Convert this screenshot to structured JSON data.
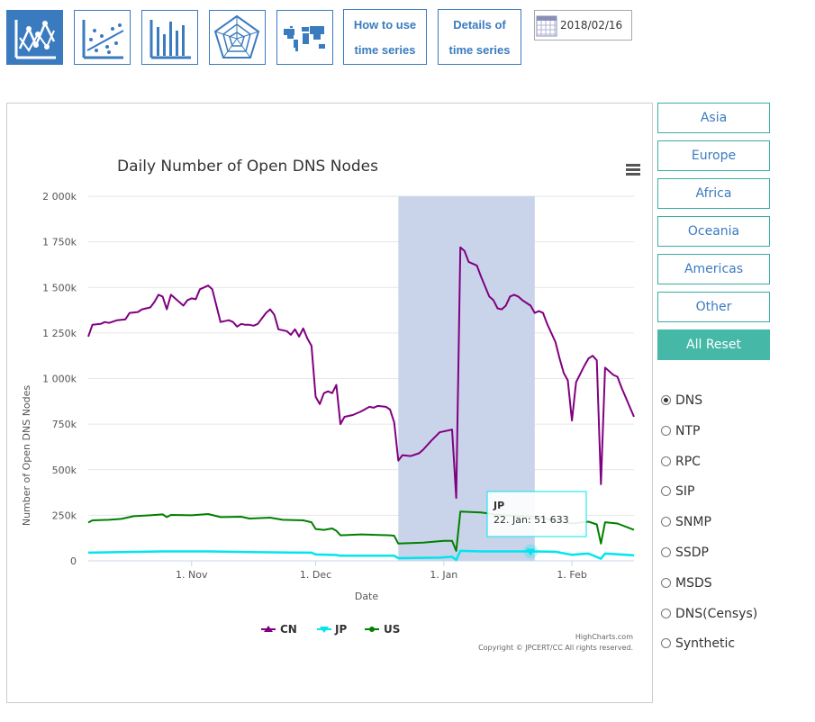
{
  "toolbar": {
    "icons": [
      "line-chart-icon",
      "scatter-chart-icon",
      "bar-chart-icon",
      "radar-chart-icon",
      "world-map-icon"
    ],
    "how_to_use": [
      "How to use",
      "time series"
    ],
    "details": [
      "Details of",
      "time series"
    ],
    "date": "2018/02/16"
  },
  "region_buttons": [
    "Asia",
    "Europe",
    "Africa",
    "Oceania",
    "Americas",
    "Other"
  ],
  "reset_label": "All Reset",
  "protocols": [
    {
      "label": "DNS",
      "selected": true
    },
    {
      "label": "NTP",
      "selected": false
    },
    {
      "label": "RPC",
      "selected": false
    },
    {
      "label": "SIP",
      "selected": false
    },
    {
      "label": "SNMP",
      "selected": false
    },
    {
      "label": "SSDP",
      "selected": false
    },
    {
      "label": "MSDS",
      "selected": false
    },
    {
      "label": "DNS(Censys)",
      "selected": false
    },
    {
      "label": "Synthetic",
      "selected": false
    }
  ],
  "colors": {
    "accent": "#3a7bbf",
    "teal": "#45b8a8",
    "cn": "#800080",
    "jp": "#00e5ee",
    "us": "#008000",
    "band": "#c9d4ea"
  },
  "credits": [
    "HighCharts.com",
    "Copyright © JPCERT/CC All rights reserved."
  ],
  "tooltip": {
    "series": "JP",
    "text": "22. Jan: 51 633"
  },
  "chart_data": {
    "type": "line",
    "title": "Daily Number of Open DNS Nodes",
    "xlabel": "Date",
    "ylabel": "Number of Open DNS Nodes",
    "ylim": [
      0,
      2000000
    ],
    "yticks": [
      "0",
      "250k",
      "500k",
      "750k",
      "1 000k",
      "1 250k",
      "1 500k",
      "1 750k",
      "2 000k"
    ],
    "xticks": [
      "1. Nov",
      "1. Dec",
      "1. Jan",
      "1. Feb"
    ],
    "x_range": [
      "2017-10-07",
      "2018-02-16"
    ],
    "highlight_band": [
      "2017-12-21",
      "2018-01-23"
    ],
    "legend_position": "bottom-center",
    "series": [
      {
        "name": "CN",
        "color": "#800080",
        "points": [
          [
            "2017-10-07",
            1230000
          ],
          [
            "2017-10-08",
            1295000
          ],
          [
            "2017-10-10",
            1300000
          ],
          [
            "2017-10-11",
            1310000
          ],
          [
            "2017-10-12",
            1305000
          ],
          [
            "2017-10-14",
            1320000
          ],
          [
            "2017-10-16",
            1325000
          ],
          [
            "2017-10-17",
            1360000
          ],
          [
            "2017-10-19",
            1365000
          ],
          [
            "2017-10-20",
            1380000
          ],
          [
            "2017-10-22",
            1390000
          ],
          [
            "2017-10-23",
            1420000
          ],
          [
            "2017-10-24",
            1460000
          ],
          [
            "2017-10-25",
            1450000
          ],
          [
            "2017-10-26",
            1380000
          ],
          [
            "2017-10-27",
            1460000
          ],
          [
            "2017-10-28",
            1440000
          ],
          [
            "2017-10-30",
            1400000
          ],
          [
            "2017-10-31",
            1430000
          ],
          [
            "2017-11-01",
            1440000
          ],
          [
            "2017-11-02",
            1435000
          ],
          [
            "2017-11-03",
            1490000
          ],
          [
            "2017-11-04",
            1500000
          ],
          [
            "2017-11-05",
            1510000
          ],
          [
            "2017-11-06",
            1490000
          ],
          [
            "2017-11-08",
            1310000
          ],
          [
            "2017-11-10",
            1320000
          ],
          [
            "2017-11-11",
            1310000
          ],
          [
            "2017-11-12",
            1285000
          ],
          [
            "2017-11-13",
            1300000
          ],
          [
            "2017-11-14",
            1295000
          ],
          [
            "2017-11-15",
            1295000
          ],
          [
            "2017-11-16",
            1290000
          ],
          [
            "2017-11-17",
            1300000
          ],
          [
            "2017-11-19",
            1360000
          ],
          [
            "2017-11-20",
            1380000
          ],
          [
            "2017-11-21",
            1350000
          ],
          [
            "2017-11-22",
            1270000
          ],
          [
            "2017-11-24",
            1260000
          ],
          [
            "2017-11-25",
            1240000
          ],
          [
            "2017-11-26",
            1270000
          ],
          [
            "2017-11-27",
            1230000
          ],
          [
            "2017-11-28",
            1275000
          ],
          [
            "2017-11-29",
            1220000
          ],
          [
            "2017-11-30",
            1180000
          ],
          [
            "2017-12-01",
            900000
          ],
          [
            "2017-12-02",
            860000
          ],
          [
            "2017-12-03",
            920000
          ],
          [
            "2017-12-04",
            930000
          ],
          [
            "2017-12-05",
            920000
          ],
          [
            "2017-12-06",
            965000
          ],
          [
            "2017-12-07",
            750000
          ],
          [
            "2017-12-08",
            790000
          ],
          [
            "2017-12-10",
            800000
          ],
          [
            "2017-12-12",
            820000
          ],
          [
            "2017-12-14",
            845000
          ],
          [
            "2017-12-15",
            840000
          ],
          [
            "2017-12-16",
            850000
          ],
          [
            "2017-12-18",
            845000
          ],
          [
            "2017-12-19",
            830000
          ],
          [
            "2017-12-20",
            760000
          ],
          [
            "2017-12-21",
            550000
          ],
          [
            "2017-12-22",
            580000
          ],
          [
            "2017-12-24",
            575000
          ],
          [
            "2017-12-26",
            590000
          ],
          [
            "2017-12-27",
            610000
          ],
          [
            "2017-12-29",
            660000
          ],
          [
            "2017-12-31",
            705000
          ],
          [
            "2018-01-02",
            715000
          ],
          [
            "2018-01-03",
            720000
          ],
          [
            "2018-01-04",
            345000
          ],
          [
            "2018-01-05",
            1720000
          ],
          [
            "2018-01-06",
            1700000
          ],
          [
            "2018-01-07",
            1640000
          ],
          [
            "2018-01-09",
            1620000
          ],
          [
            "2018-01-10",
            1560000
          ],
          [
            "2018-01-12",
            1450000
          ],
          [
            "2018-01-13",
            1430000
          ],
          [
            "2018-01-14",
            1385000
          ],
          [
            "2018-01-15",
            1380000
          ],
          [
            "2018-01-16",
            1400000
          ],
          [
            "2018-01-17",
            1450000
          ],
          [
            "2018-01-18",
            1460000
          ],
          [
            "2018-01-19",
            1450000
          ],
          [
            "2018-01-20",
            1430000
          ],
          [
            "2018-01-21",
            1415000
          ],
          [
            "2018-01-22",
            1400000
          ],
          [
            "2018-01-23",
            1360000
          ],
          [
            "2018-01-24",
            1370000
          ],
          [
            "2018-01-25",
            1360000
          ],
          [
            "2018-01-26",
            1300000
          ],
          [
            "2018-01-28",
            1200000
          ],
          [
            "2018-01-29",
            1110000
          ],
          [
            "2018-01-30",
            1030000
          ],
          [
            "2018-01-31",
            990000
          ],
          [
            "2018-02-01",
            770000
          ],
          [
            "2018-02-02",
            980000
          ],
          [
            "2018-02-04",
            1070000
          ],
          [
            "2018-02-05",
            1110000
          ],
          [
            "2018-02-06",
            1125000
          ],
          [
            "2018-02-07",
            1100000
          ],
          [
            "2018-02-08",
            420000
          ],
          [
            "2018-02-09",
            1060000
          ],
          [
            "2018-02-10",
            1040000
          ],
          [
            "2018-02-11",
            1020000
          ],
          [
            "2018-02-12",
            1010000
          ],
          [
            "2018-02-13",
            950000
          ],
          [
            "2018-02-16",
            790000
          ]
        ]
      },
      {
        "name": "JP",
        "color": "#00e5ee",
        "points": [
          [
            "2017-10-07",
            45000
          ],
          [
            "2017-10-15",
            48000
          ],
          [
            "2017-10-25",
            52000
          ],
          [
            "2017-11-05",
            52000
          ],
          [
            "2017-11-15",
            48000
          ],
          [
            "2017-11-25",
            46000
          ],
          [
            "2017-11-30",
            45000
          ],
          [
            "2017-12-01",
            35000
          ],
          [
            "2017-12-06",
            32000
          ],
          [
            "2017-12-07",
            28000
          ],
          [
            "2017-12-20",
            28000
          ],
          [
            "2017-12-21",
            15000
          ],
          [
            "2017-12-31",
            18000
          ],
          [
            "2018-01-03",
            22000
          ],
          [
            "2018-01-04",
            5000
          ],
          [
            "2018-01-05",
            55000
          ],
          [
            "2018-01-10",
            52000
          ],
          [
            "2018-01-22",
            51633
          ],
          [
            "2018-01-28",
            50000
          ],
          [
            "2018-02-01",
            33000
          ],
          [
            "2018-02-05",
            40000
          ],
          [
            "2018-02-08",
            12000
          ],
          [
            "2018-02-09",
            40000
          ],
          [
            "2018-02-16",
            30000
          ]
        ]
      },
      {
        "name": "US",
        "color": "#008000",
        "points": [
          [
            "2017-10-07",
            210000
          ],
          [
            "2017-10-08",
            222000
          ],
          [
            "2017-10-12",
            225000
          ],
          [
            "2017-10-15",
            230000
          ],
          [
            "2017-10-18",
            245000
          ],
          [
            "2017-10-22",
            250000
          ],
          [
            "2017-10-25",
            255000
          ],
          [
            "2017-10-26",
            240000
          ],
          [
            "2017-10-27",
            252000
          ],
          [
            "2017-11-01",
            250000
          ],
          [
            "2017-11-05",
            257000
          ],
          [
            "2017-11-08",
            240000
          ],
          [
            "2017-11-13",
            242000
          ],
          [
            "2017-11-15",
            232000
          ],
          [
            "2017-11-20",
            237000
          ],
          [
            "2017-11-23",
            225000
          ],
          [
            "2017-11-28",
            222000
          ],
          [
            "2017-11-30",
            212000
          ],
          [
            "2017-12-01",
            175000
          ],
          [
            "2017-12-03",
            170000
          ],
          [
            "2017-12-05",
            178000
          ],
          [
            "2017-12-06",
            165000
          ],
          [
            "2017-12-07",
            140000
          ],
          [
            "2017-12-12",
            145000
          ],
          [
            "2017-12-19",
            140000
          ],
          [
            "2017-12-20",
            138000
          ],
          [
            "2017-12-21",
            95000
          ],
          [
            "2017-12-27",
            100000
          ],
          [
            "2018-01-01",
            110000
          ],
          [
            "2018-01-03",
            110000
          ],
          [
            "2018-01-04",
            55000
          ],
          [
            "2018-01-05",
            270000
          ],
          [
            "2018-01-10",
            265000
          ],
          [
            "2018-01-15",
            250000
          ],
          [
            "2018-01-22",
            245000
          ],
          [
            "2018-01-28",
            220000
          ],
          [
            "2018-02-01",
            205000
          ],
          [
            "2018-02-05",
            215000
          ],
          [
            "2018-02-07",
            200000
          ],
          [
            "2018-02-08",
            95000
          ],
          [
            "2018-02-09",
            212000
          ],
          [
            "2018-02-12",
            205000
          ],
          [
            "2018-02-16",
            170000
          ]
        ]
      }
    ]
  }
}
